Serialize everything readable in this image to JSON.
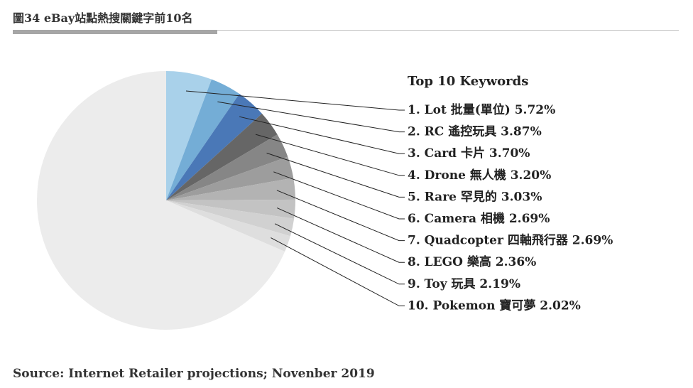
{
  "figure": {
    "title": "圖34 eBay站點熱搜關鍵字前10名",
    "source": "Source: Internet Retailer projections; Novenber 2019"
  },
  "chart_data": {
    "type": "pie",
    "legend_title": "Top 10 Keywords",
    "legend_placement": "right",
    "slices": [
      {
        "label": "1. Lot 批量(單位) 5.72%",
        "name": "Lot 批量(單位)",
        "value": 5.72,
        "color": "#a9d1ea"
      },
      {
        "label": "2. RC 遙控玩具 3.87%",
        "name": "RC 遙控玩具",
        "value": 3.87,
        "color": "#74add6"
      },
      {
        "label": "3. Card 卡片 3.70%",
        "name": "Card 卡片",
        "value": 3.7,
        "color": "#4a78b7"
      },
      {
        "label": "4. Drone 無人機 3.20%",
        "name": "Drone 無人機",
        "value": 3.2,
        "color": "#666666"
      },
      {
        "label": "5. Rare 罕見的 3.03%",
        "name": "Rare 罕見的",
        "value": 3.03,
        "color": "#868686"
      },
      {
        "label": "6. Camera 相機 2.69%",
        "name": "Camera 相機",
        "value": 2.69,
        "color": "#9d9d9d"
      },
      {
        "label": "7. Quadcopter 四軸飛行器 2.69%",
        "name": "Quadcopter 四軸飛行器",
        "value": 2.69,
        "color": "#b3b3b3"
      },
      {
        "label": "8. LEGO 樂高 2.36%",
        "name": "LEGO 樂高",
        "value": 2.36,
        "color": "#c3c3c3"
      },
      {
        "label": "9. Toy 玩具 2.19%",
        "name": "Toy 玩具",
        "value": 2.19,
        "color": "#d1d1d1"
      },
      {
        "label": "10. Pokemon 寶可夢 2.02%",
        "name": "Pokemon 寶可夢",
        "value": 2.02,
        "color": "#dedede"
      },
      {
        "label": "",
        "name": "",
        "value": 68.53,
        "color": "#ececec"
      }
    ]
  }
}
